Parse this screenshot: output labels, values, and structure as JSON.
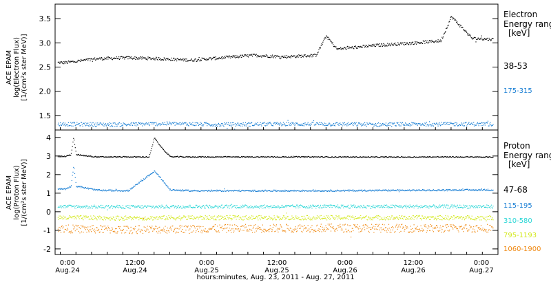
{
  "xaxis": {
    "title": "hours:minutes, Aug. 23, 2011 - Aug. 27, 2011",
    "tick_times": [
      "0:00",
      "12:00",
      "0:00",
      "12:00",
      "0:00",
      "12:00",
      "0:00"
    ],
    "tick_dates": [
      "Aug.24",
      "Aug.24",
      "Aug.25",
      "Aug.25",
      "Aug.26",
      "Aug.26",
      "Aug.27"
    ]
  },
  "colors": {
    "black": "#000000",
    "blue": "#1a7fd4",
    "cyan": "#2ad6d6",
    "yellow": "#d2e81a",
    "orange": "#f08a14"
  },
  "chart_data": [
    {
      "type": "scatter",
      "panel": "electron",
      "ylabel": [
        "ACE EPAM",
        "log(Electron Flux)",
        "[1/(cm²s ster MeV)]"
      ],
      "yticks": [
        1.5,
        2.0,
        2.5,
        3.0,
        3.5
      ],
      "ylim": [
        1.2,
        3.8
      ],
      "legend_title": [
        "Electron",
        "Energy range",
        "[keV]"
      ],
      "series": [
        {
          "name": "38-53",
          "color": "#000000",
          "x": [
            0,
            6,
            12,
            18,
            24,
            30,
            36,
            42,
            48,
            50,
            52,
            56,
            60,
            66,
            72,
            74,
            78,
            82
          ],
          "values": [
            2.6,
            2.68,
            2.7,
            2.68,
            2.65,
            2.7,
            2.75,
            2.72,
            2.75,
            3.15,
            2.88,
            2.92,
            2.96,
            3.0,
            3.05,
            3.55,
            3.1,
            3.08
          ]
        },
        {
          "name": "175-315",
          "color": "#1a7fd4",
          "x": [
            0,
            10,
            20,
            30,
            40,
            50,
            60,
            70,
            82
          ],
          "values": [
            1.33,
            1.32,
            1.34,
            1.32,
            1.33,
            1.33,
            1.32,
            1.33,
            1.33
          ]
        }
      ]
    },
    {
      "type": "scatter",
      "panel": "proton",
      "ylabel": [
        "ACE EPAM",
        "log(Proton Flux)",
        "[1/(cm²s ster MeV)]"
      ],
      "yticks": [
        -2,
        -1,
        0,
        1,
        2,
        3,
        4
      ],
      "ylim": [
        -2.3,
        4.4
      ],
      "legend_title": [
        "Proton",
        "Energy range",
        "[keV]"
      ],
      "series": [
        {
          "name": "47-68",
          "color": "#000000",
          "x": [
            0,
            1,
            1.5,
            2,
            6,
            12,
            16,
            17,
            18,
            20,
            24,
            48,
            60,
            72,
            82
          ],
          "values": [
            3.0,
            3.1,
            4.0,
            3.1,
            2.97,
            2.97,
            2.97,
            4.0,
            3.6,
            2.98,
            2.97,
            2.97,
            2.96,
            2.97,
            2.96
          ]
        },
        {
          "name": "115-195",
          "color": "#1a7fd4",
          "x": [
            0,
            1,
            1.5,
            2,
            6,
            12,
            17,
            18,
            20,
            24,
            48,
            72,
            82
          ],
          "values": [
            1.25,
            1.4,
            2.5,
            1.4,
            1.18,
            1.15,
            2.2,
            1.9,
            1.2,
            1.15,
            1.15,
            1.18,
            1.2
          ]
        },
        {
          "name": "310-580",
          "color": "#2ad6d6",
          "x": [
            0,
            12,
            24,
            48,
            72,
            82
          ],
          "values": [
            0.3,
            0.28,
            0.3,
            0.3,
            0.3,
            0.3
          ]
        },
        {
          "name": "795-1193",
          "color": "#d2e81a",
          "x": [
            0,
            12,
            24,
            48,
            72,
            82
          ],
          "values": [
            -0.3,
            -0.32,
            -0.3,
            -0.3,
            -0.3,
            -0.3
          ]
        },
        {
          "name": "1060-1900",
          "color": "#f08a14",
          "x": [
            0,
            12,
            24,
            48,
            72,
            82
          ],
          "values": [
            -0.9,
            -0.95,
            -0.9,
            -0.85,
            -0.88,
            -0.85
          ]
        }
      ]
    }
  ]
}
